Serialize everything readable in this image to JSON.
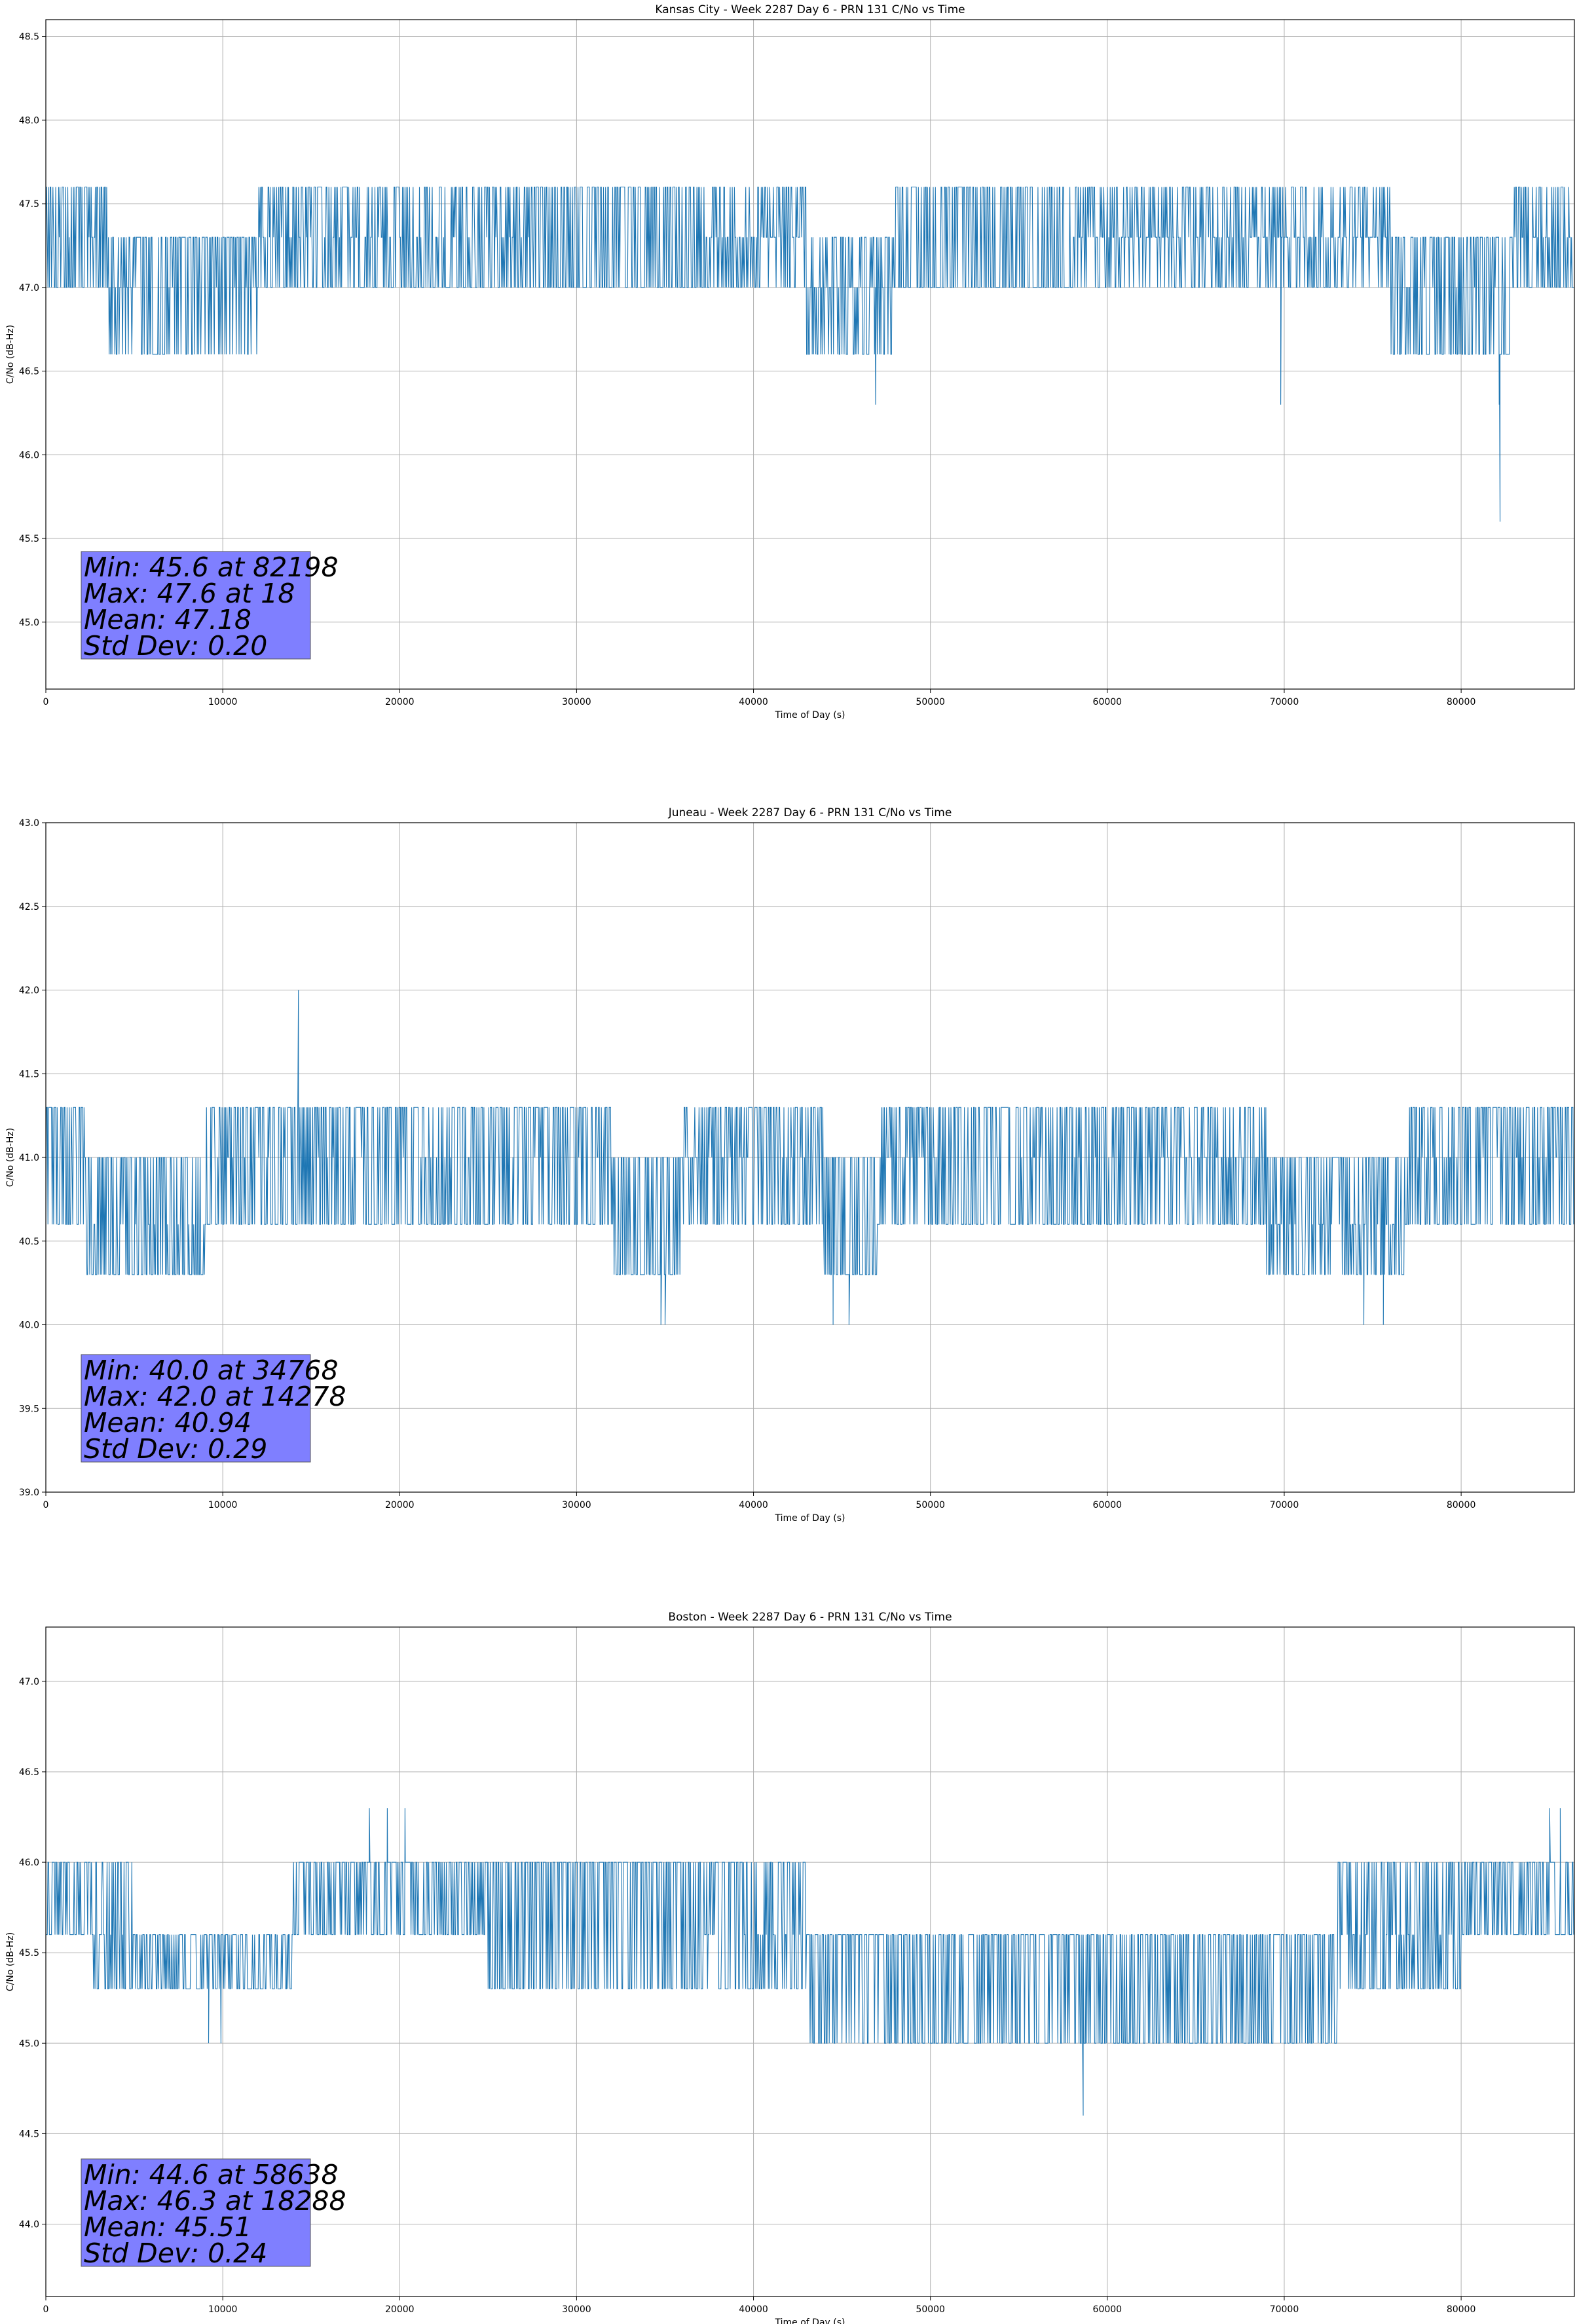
{
  "chart_data": [
    {
      "type": "line",
      "title": "Kansas City - Week 2287 Day 6 - PRN 131 C/No vs Time",
      "xlabel": "Time of Day (s)",
      "ylabel": "C/No (dB-Hz)",
      "xlim": [
        0,
        86400
      ],
      "ylim": [
        44.6,
        48.6
      ],
      "x_ticks": [
        0,
        10000,
        20000,
        30000,
        40000,
        50000,
        60000,
        70000,
        80000
      ],
      "y_ticks": [
        45.0,
        45.5,
        46.0,
        46.5,
        47.0,
        47.5,
        48.0,
        48.5
      ],
      "y_tick_labels": [
        "45.0",
        "45.5",
        "46.0",
        "46.5",
        "47.0",
        "47.5",
        "48.0",
        "48.5"
      ],
      "grid": true,
      "line_color": "#1f77b4",
      "box_color": "#7f7fff",
      "stats": [
        "Min: 45.6 at 82198",
        "Max: 47.6 at 18",
        "Mean: 47.18",
        "Std Dev: 0.20"
      ],
      "levels": [
        46.6,
        47.0,
        47.3,
        47.6
      ],
      "segments": [
        {
          "x": [
            0,
            3500
          ],
          "base": 47.3,
          "lo": 47.0,
          "hi": 47.6,
          "density": 0.9
        },
        {
          "x": [
            3500,
            5000
          ],
          "base": 47.0,
          "lo": 46.6,
          "hi": 47.3,
          "density": 0.5
        },
        {
          "x": [
            5000,
            12000
          ],
          "base": 47.0,
          "lo": 46.6,
          "hi": 47.3,
          "density": 0.9
        },
        {
          "x": [
            12000,
            28000
          ],
          "base": 47.3,
          "lo": 47.0,
          "hi": 47.6,
          "density": 0.8
        },
        {
          "x": [
            28000,
            37000
          ],
          "base": 47.3,
          "lo": 47.0,
          "hi": 47.6,
          "density": 1.0
        },
        {
          "x": [
            37000,
            43000
          ],
          "base": 47.3,
          "lo": 47.0,
          "hi": 47.6,
          "density": 0.6
        },
        {
          "x": [
            43000,
            48000
          ],
          "base": 47.0,
          "lo": 46.6,
          "hi": 47.3,
          "density": 0.7
        },
        {
          "x": [
            48000,
            58000
          ],
          "base": 47.3,
          "lo": 47.0,
          "hi": 47.6,
          "density": 1.0
        },
        {
          "x": [
            58000,
            76000
          ],
          "base": 47.3,
          "lo": 47.0,
          "hi": 47.6,
          "density": 0.6
        },
        {
          "x": [
            76000,
            83000
          ],
          "base": 47.0,
          "lo": 46.6,
          "hi": 47.3,
          "density": 0.9
        },
        {
          "x": [
            83000,
            86400
          ],
          "base": 47.3,
          "lo": 47.0,
          "hi": 47.6,
          "density": 0.8
        }
      ],
      "spikes": [
        [
          82198,
          45.6
        ],
        [
          82150,
          46.3
        ],
        [
          46900,
          46.3
        ],
        [
          69800,
          46.3
        ],
        [
          18,
          47.6
        ]
      ]
    },
    {
      "type": "line",
      "title": "Juneau - Week 2287 Day 6 - PRN 131 C/No vs Time",
      "xlabel": "Time of Day (s)",
      "ylabel": "C/No (dB-Hz)",
      "xlim": [
        0,
        86400
      ],
      "ylim": [
        39.0,
        43.0
      ],
      "x_ticks": [
        0,
        10000,
        20000,
        30000,
        40000,
        50000,
        60000,
        70000,
        80000
      ],
      "y_ticks": [
        39.0,
        39.5,
        40.0,
        40.5,
        41.0,
        41.5,
        42.0,
        42.5,
        43.0
      ],
      "y_tick_labels": [
        "39.0",
        "39.5",
        "40.0",
        "40.5",
        "41.0",
        "41.5",
        "42.0",
        "42.5",
        "43.0"
      ],
      "grid": true,
      "line_color": "#1f77b4",
      "box_color": "#7f7fff",
      "stats": [
        "Min: 40.0 at 34768",
        "Max: 42.0 at 14278",
        "Mean: 40.94",
        "Std Dev: 0.29"
      ],
      "levels": [
        40.0,
        40.3,
        40.6,
        41.0,
        41.3,
        41.6
      ],
      "segments": [
        {
          "x": [
            0,
            2200
          ],
          "base": 41.0,
          "lo": 40.6,
          "hi": 41.3,
          "density": 0.9
        },
        {
          "x": [
            2200,
            9000
          ],
          "base": 40.6,
          "lo": 40.3,
          "hi": 41.0,
          "density": 0.9
        },
        {
          "x": [
            9000,
            16000
          ],
          "base": 41.0,
          "lo": 40.6,
          "hi": 41.3,
          "density": 0.9
        },
        {
          "x": [
            16000,
            32000
          ],
          "base": 41.0,
          "lo": 40.6,
          "hi": 41.3,
          "density": 0.9
        },
        {
          "x": [
            32000,
            36000
          ],
          "base": 40.6,
          "lo": 40.3,
          "hi": 41.0,
          "density": 0.9
        },
        {
          "x": [
            36000,
            44000
          ],
          "base": 41.0,
          "lo": 40.6,
          "hi": 41.3,
          "density": 0.8
        },
        {
          "x": [
            44000,
            47000
          ],
          "base": 40.6,
          "lo": 40.3,
          "hi": 41.0,
          "density": 1.0
        },
        {
          "x": [
            47000,
            51000
          ],
          "base": 41.0,
          "lo": 40.6,
          "hi": 41.3,
          "density": 0.8
        },
        {
          "x": [
            51000,
            63000
          ],
          "base": 41.0,
          "lo": 40.6,
          "hi": 41.3,
          "density": 0.9
        },
        {
          "x": [
            63000,
            69000
          ],
          "base": 41.0,
          "lo": 40.6,
          "hi": 41.3,
          "density": 0.7
        },
        {
          "x": [
            69000,
            77000
          ],
          "base": 40.6,
          "lo": 40.3,
          "hi": 41.0,
          "density": 0.8
        },
        {
          "x": [
            77000,
            86400
          ],
          "base": 41.0,
          "lo": 40.6,
          "hi": 41.3,
          "density": 0.9
        }
      ],
      "spikes": [
        [
          14278,
          42.0
        ],
        [
          34768,
          40.0
        ],
        [
          35000,
          40.0
        ],
        [
          44500,
          40.0
        ],
        [
          45400,
          40.0
        ],
        [
          74500,
          40.0
        ],
        [
          75600,
          40.0
        ]
      ]
    },
    {
      "type": "line",
      "title": "Boston - Week 2287 Day 6 - PRN 131 C/No vs Time",
      "xlabel": "Time of Day (s)",
      "ylabel": "C/No (dB-Hz)",
      "xlim": [
        0,
        86400
      ],
      "ylim": [
        43.6,
        47.3
      ],
      "x_ticks": [
        0,
        10000,
        20000,
        30000,
        40000,
        50000,
        60000,
        70000,
        80000
      ],
      "y_ticks": [
        44.0,
        44.5,
        45.0,
        45.5,
        46.0,
        46.5,
        47.0
      ],
      "y_tick_labels": [
        "44.0",
        "44.5",
        "45.0",
        "45.5",
        "46.0",
        "46.5",
        "47.0"
      ],
      "grid": true,
      "line_color": "#1f77b4",
      "box_color": "#7f7fff",
      "stats": [
        "Min: 44.6 at 58638",
        "Max: 46.3 at 18288",
        "Mean: 45.51",
        "Std Dev: 0.24"
      ],
      "levels": [
        45.0,
        45.3,
        45.6,
        46.0,
        46.3
      ],
      "segments": [
        {
          "x": [
            0,
            2500
          ],
          "base": 46.0,
          "lo": 45.6,
          "hi": 46.0,
          "density": 1.0
        },
        {
          "x": [
            2500,
            5000
          ],
          "base": 45.6,
          "lo": 45.3,
          "hi": 46.0,
          "density": 0.7
        },
        {
          "x": [
            5000,
            14000
          ],
          "base": 45.6,
          "lo": 45.3,
          "hi": 45.6,
          "density": 1.0
        },
        {
          "x": [
            14000,
            25000
          ],
          "base": 46.0,
          "lo": 45.6,
          "hi": 46.0,
          "density": 1.0
        },
        {
          "x": [
            25000,
            36000
          ],
          "base": 46.0,
          "lo": 45.3,
          "hi": 46.0,
          "density": 0.8
        },
        {
          "x": [
            36000,
            43000
          ],
          "base": 45.6,
          "lo": 45.3,
          "hi": 46.0,
          "density": 0.8
        },
        {
          "x": [
            43000,
            73000
          ],
          "base": 45.6,
          "lo": 45.0,
          "hi": 45.6,
          "density": 0.9
        },
        {
          "x": [
            73000,
            80000
          ],
          "base": 45.6,
          "lo": 45.3,
          "hi": 46.0,
          "density": 0.8
        },
        {
          "x": [
            80000,
            86400
          ],
          "base": 46.0,
          "lo": 45.6,
          "hi": 46.0,
          "density": 1.0
        }
      ],
      "spikes": [
        [
          18288,
          46.3
        ],
        [
          19300,
          46.3
        ],
        [
          20300,
          46.3
        ],
        [
          58638,
          44.6
        ],
        [
          85000,
          46.3
        ],
        [
          85600,
          46.3
        ],
        [
          9200,
          45.0
        ],
        [
          9900,
          45.0
        ]
      ]
    }
  ]
}
